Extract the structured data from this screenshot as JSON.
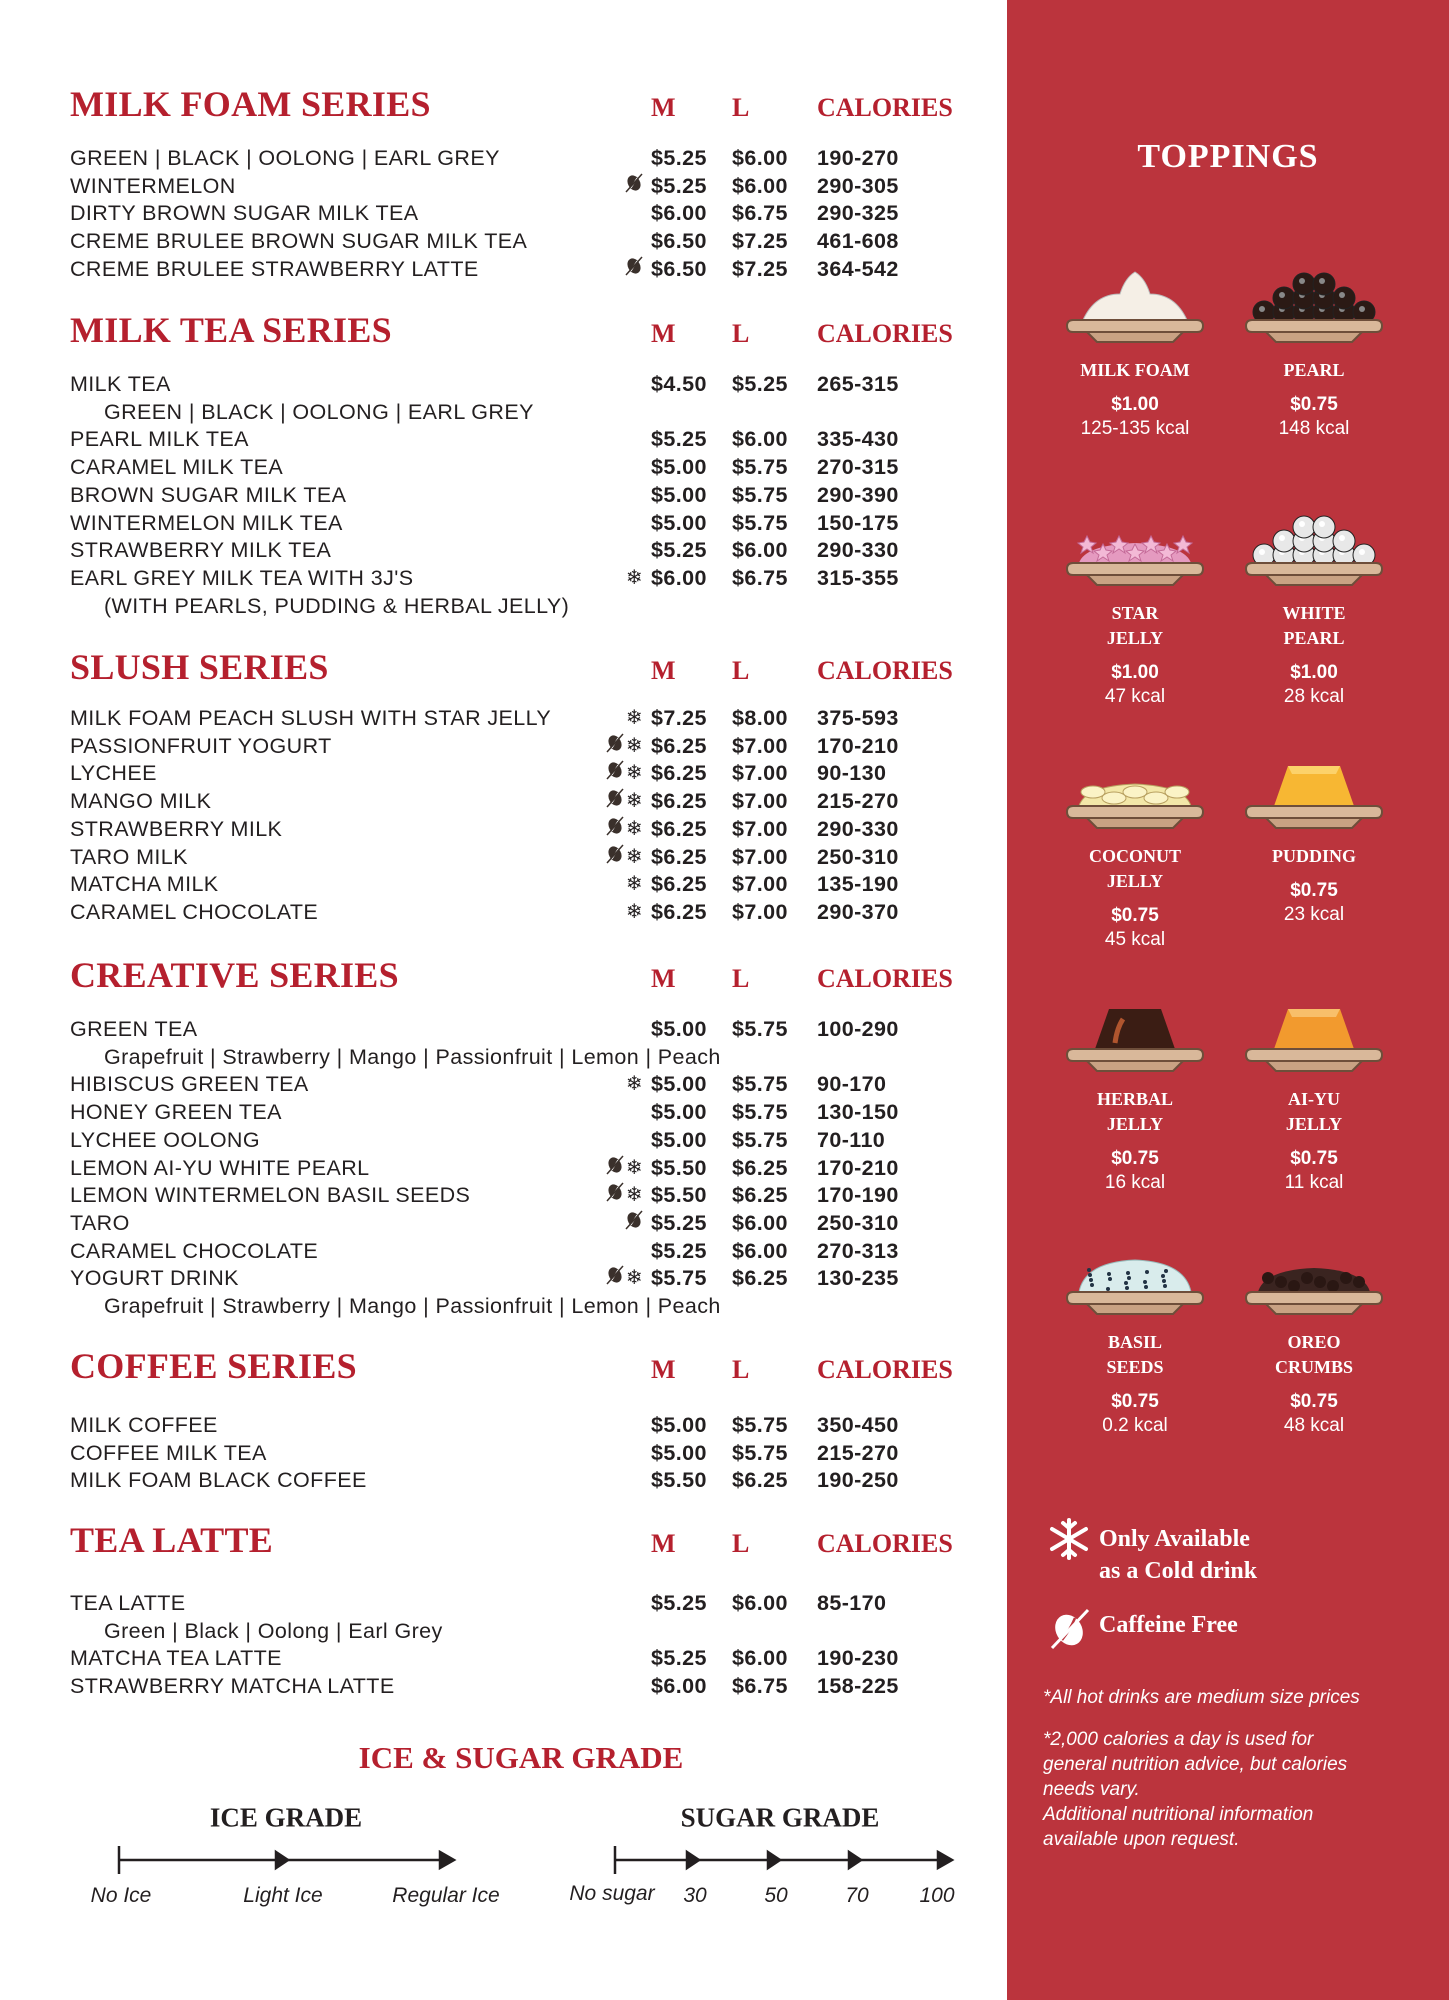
{
  "column_headers": {
    "m": "M",
    "l": "L",
    "calories": "CALORIES"
  },
  "sections": [
    {
      "title": "MILK FOAM SERIES",
      "rows": [
        {
          "name": "GREEN | BLACK | OOLONG | EARL GREY",
          "icons": [],
          "m": "$5.25",
          "l": "$6.00",
          "cal": "190-270"
        },
        {
          "name": "WINTERMELON",
          "icons": [
            "caffeine-free"
          ],
          "m": "$5.25",
          "l": "$6.00",
          "cal": "290-305"
        },
        {
          "name": "DIRTY BROWN SUGAR MILK TEA",
          "icons": [],
          "m": "$6.00",
          "l": "$6.75",
          "cal": "290-325"
        },
        {
          "name": "CREME BRULEE BROWN SUGAR MILK TEA",
          "icons": [],
          "m": "$6.50",
          "l": "$7.25",
          "cal": "461-608"
        },
        {
          "name": "CREME BRULEE STRAWBERRY LATTE",
          "icons": [
            "caffeine-free"
          ],
          "m": "$6.50",
          "l": "$7.25",
          "cal": "364-542"
        }
      ]
    },
    {
      "title": "MILK TEA SERIES",
      "rows": [
        {
          "name": "MILK TEA",
          "icons": [],
          "m": "$4.50",
          "l": "$5.25",
          "cal": "265-315"
        },
        {
          "name": "GREEN | BLACK | OOLONG | EARL GREY",
          "sub": true
        },
        {
          "name": "PEARL MILK TEA",
          "icons": [],
          "m": "$5.25",
          "l": "$6.00",
          "cal": "335-430"
        },
        {
          "name": "CARAMEL MILK TEA",
          "icons": [],
          "m": "$5.00",
          "l": "$5.75",
          "cal": "270-315"
        },
        {
          "name": "BROWN SUGAR MILK TEA",
          "icons": [],
          "m": "$5.00",
          "l": "$5.75",
          "cal": "290-390"
        },
        {
          "name": "WINTERMELON MILK TEA",
          "icons": [],
          "m": "$5.00",
          "l": "$5.75",
          "cal": "150-175"
        },
        {
          "name": "STRAWBERRY MILK TEA",
          "icons": [],
          "m": "$5.25",
          "l": "$6.00",
          "cal": "290-330"
        },
        {
          "name": "EARL GREY MILK TEA WITH 3J'S",
          "icons": [
            "cold-only"
          ],
          "m": "$6.00",
          "l": "$6.75",
          "cal": "315-355"
        },
        {
          "name": "(WITH PEARLS, PUDDING & HERBAL JELLY)",
          "sub": true
        }
      ]
    },
    {
      "title": "SLUSH SERIES",
      "rows": [
        {
          "name": "MILK FOAM PEACH SLUSH WITH STAR JELLY",
          "icons": [
            "cold-only"
          ],
          "m": "$7.25",
          "l": "$8.00",
          "cal": "375-593"
        },
        {
          "name": "PASSIONFRUIT YOGURT",
          "icons": [
            "caffeine-free",
            "cold-only"
          ],
          "m": "$6.25",
          "l": "$7.00",
          "cal": "170-210"
        },
        {
          "name": "LYCHEE",
          "icons": [
            "caffeine-free",
            "cold-only"
          ],
          "m": "$6.25",
          "l": "$7.00",
          "cal": "90-130"
        },
        {
          "name": "MANGO MILK",
          "icons": [
            "caffeine-free",
            "cold-only"
          ],
          "m": "$6.25",
          "l": "$7.00",
          "cal": "215-270"
        },
        {
          "name": "STRAWBERRY MILK",
          "icons": [
            "caffeine-free",
            "cold-only"
          ],
          "m": "$6.25",
          "l": "$7.00",
          "cal": "290-330"
        },
        {
          "name": "TARO MILK",
          "icons": [
            "caffeine-free",
            "cold-only"
          ],
          "m": "$6.25",
          "l": "$7.00",
          "cal": "250-310"
        },
        {
          "name": "MATCHA MILK",
          "icons": [
            "cold-only"
          ],
          "m": "$6.25",
          "l": "$7.00",
          "cal": "135-190"
        },
        {
          "name": "CARAMEL CHOCOLATE",
          "icons": [
            "cold-only"
          ],
          "m": "$6.25",
          "l": "$7.00",
          "cal": "290-370"
        }
      ]
    },
    {
      "title": "CREATIVE SERIES",
      "rows": [
        {
          "name": "GREEN TEA",
          "icons": [],
          "m": "$5.00",
          "l": "$5.75",
          "cal": "100-290"
        },
        {
          "name": "Grapefruit | Strawberry | Mango | Passionfruit | Lemon | Peach",
          "sub": true
        },
        {
          "name": "HIBISCUS GREEN TEA",
          "icons": [
            "cold-only"
          ],
          "m": "$5.00",
          "l": "$5.75",
          "cal": "90-170"
        },
        {
          "name": "HONEY GREEN TEA",
          "icons": [],
          "m": "$5.00",
          "l": "$5.75",
          "cal": "130-150"
        },
        {
          "name": "LYCHEE OOLONG",
          "icons": [],
          "m": "$5.00",
          "l": "$5.75",
          "cal": "70-110"
        },
        {
          "name": "LEMON AI-YU WHITE PEARL",
          "icons": [
            "caffeine-free",
            "cold-only"
          ],
          "m": "$5.50",
          "l": "$6.25",
          "cal": "170-210"
        },
        {
          "name": "LEMON WINTERMELON BASIL SEEDS",
          "icons": [
            "caffeine-free",
            "cold-only"
          ],
          "m": "$5.50",
          "l": "$6.25",
          "cal": "170-190"
        },
        {
          "name": "TARO",
          "icons": [
            "caffeine-free"
          ],
          "m": "$5.25",
          "l": "$6.00",
          "cal": "250-310"
        },
        {
          "name": "CARAMEL CHOCOLATE",
          "icons": [],
          "m": "$5.25",
          "l": "$6.00",
          "cal": "270-313"
        },
        {
          "name": "YOGURT DRINK",
          "icons": [
            "caffeine-free",
            "cold-only"
          ],
          "m": "$5.75",
          "l": "$6.25",
          "cal": "130-235"
        },
        {
          "name": "Grapefruit | Strawberry | Mango | Passionfruit | Lemon | Peach",
          "sub": true
        }
      ]
    },
    {
      "title": "COFFEE SERIES",
      "rows": [
        {
          "name": "MILK COFFEE",
          "icons": [],
          "m": "$5.00",
          "l": "$5.75",
          "cal": "350-450"
        },
        {
          "name": "COFFEE MILK TEA",
          "icons": [],
          "m": "$5.00",
          "l": "$5.75",
          "cal": "215-270"
        },
        {
          "name": "MILK FOAM BLACK COFFEE",
          "icons": [],
          "m": "$5.50",
          "l": "$6.25",
          "cal": "190-250"
        }
      ]
    },
    {
      "title": "TEA LATTE",
      "rows": [
        {
          "name": "TEA LATTE",
          "icons": [],
          "m": "$5.25",
          "l": "$6.00",
          "cal": "85-170"
        },
        {
          "name": "Green | Black | Oolong | Earl Grey",
          "sub": true
        },
        {
          "name": "MATCHA TEA LATTE",
          "icons": [],
          "m": "$5.25",
          "l": "$6.00",
          "cal": "190-230"
        },
        {
          "name": "STRAWBERRY MATCHA LATTE",
          "icons": [],
          "m": "$6.00",
          "l": "$6.75",
          "cal": "158-225"
        }
      ]
    }
  ],
  "grades": {
    "title": "ICE & SUGAR GRADE",
    "ice": {
      "title": "ICE GRADE",
      "levels": [
        "No Ice",
        "Light Ice",
        "Regular Ice"
      ]
    },
    "sugar": {
      "title": "SUGAR GRADE",
      "levels": [
        "No sugar",
        "30",
        "50",
        "70",
        "100"
      ]
    }
  },
  "toppings": {
    "title": "TOPPINGS",
    "items": [
      {
        "name": "MILK FOAM",
        "price": "$1.00",
        "kcal": "125-135 kcal",
        "icon": "milk-foam"
      },
      {
        "name": "PEARL",
        "price": "$0.75",
        "kcal": "148 kcal",
        "icon": "pearl"
      },
      {
        "name": "STAR\nJELLY",
        "price": "$1.00",
        "kcal": "47 kcal",
        "icon": "star-jelly"
      },
      {
        "name": "WHITE\nPEARL",
        "price": "$1.00",
        "kcal": "28 kcal",
        "icon": "white-pearl"
      },
      {
        "name": "COCONUT\nJELLY",
        "price": "$0.75",
        "kcal": "45 kcal",
        "icon": "coconut-jelly"
      },
      {
        "name": "PUDDING",
        "price": "$0.75",
        "kcal": "23 kcal",
        "icon": "pudding"
      },
      {
        "name": "HERBAL\nJELLY",
        "price": "$0.75",
        "kcal": "16 kcal",
        "icon": "herbal-jelly"
      },
      {
        "name": "AI-YU\nJELLY",
        "price": "$0.75",
        "kcal": "11 kcal",
        "icon": "ai-yu-jelly"
      },
      {
        "name": "BASIL\nSEEDS",
        "price": "$0.75",
        "kcal": "0.2 kcal",
        "icon": "basil-seeds"
      },
      {
        "name": "OREO\nCRUMBS",
        "price": "$0.75",
        "kcal": "48 kcal",
        "icon": "oreo-crumbs"
      }
    ]
  },
  "legend": {
    "cold_only": "Only Available\nas a Cold drink",
    "caffeine_free": "Caffeine Free"
  },
  "notes": [
    "*All hot drinks are medium size prices",
    "*2,000 calories a day is used for general nutrition advice, but calories needs vary.\nAdditional nutritional information available upon request."
  ],
  "colors": {
    "accent_red": "#b5202e",
    "panel_red": "#bb343d",
    "text": "#231f20"
  }
}
